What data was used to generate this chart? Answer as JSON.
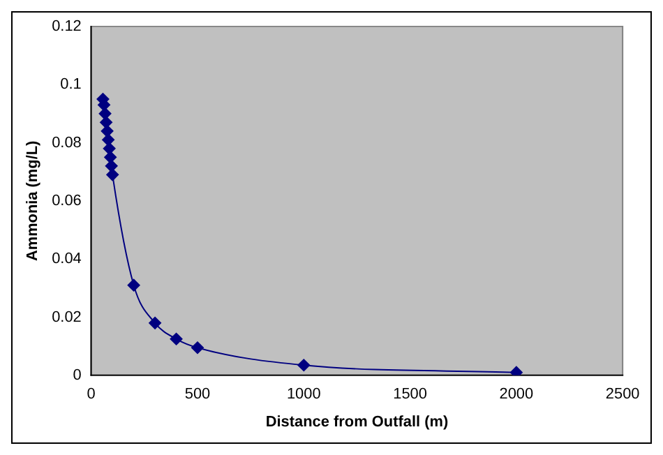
{
  "chart_data": {
    "type": "line",
    "xlabel": "Distance from Outfall (m)",
    "ylabel": "Ammonia (mg/L)",
    "x": [
      55,
      60,
      65,
      70,
      75,
      80,
      85,
      90,
      95,
      100,
      200,
      300,
      400,
      500,
      1000,
      2000
    ],
    "series": [
      {
        "color": "#000080",
        "values": [
          0.095,
          0.093,
          0.09,
          0.087,
          0.084,
          0.081,
          0.078,
          0.075,
          0.072,
          0.069,
          0.031,
          0.018,
          0.0125,
          0.0095,
          0.0035,
          0.001
        ]
      }
    ],
    "xlim": [
      0,
      2500
    ],
    "xticks": [
      0,
      500,
      1000,
      1500,
      2000,
      2500
    ],
    "ylim": [
      0,
      0.12
    ],
    "yticks": [
      0,
      0.02,
      0.04,
      0.06,
      0.08,
      0.1,
      0.12
    ],
    "grid": false,
    "legend": false,
    "marker": "diamond",
    "line_style": "solid"
  }
}
